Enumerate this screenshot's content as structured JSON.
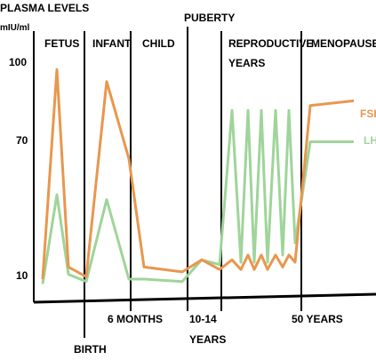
{
  "chart_data": {
    "type": "line",
    "ylabel": "PLASMA LEVELS",
    "yunit": "mIU/ml",
    "yticks": [
      "100",
      "70",
      "10"
    ],
    "phases": [
      "FETUS",
      "INFANT",
      "CHILD",
      "REPRODUCTIVE",
      "YEARS",
      "MENOPAUSE"
    ],
    "timeline_markers": {
      "puberty": "PUBERTY",
      "birth": "BIRTH",
      "six_months": "6 MONTHS",
      "age_10_14": "10-14",
      "years": "YEARS",
      "fifty_years": "50 YEARS"
    },
    "series": [
      {
        "name": "FSH",
        "color": "#e8974e",
        "values": [
          10,
          97,
          15,
          11,
          92,
          60,
          15,
          13,
          18,
          14,
          18,
          14,
          20,
          14,
          20,
          14,
          20,
          15,
          20,
          17,
          82,
          84
        ]
      },
      {
        "name": "LH",
        "color": "#9fd49a",
        "values": [
          8,
          45,
          12,
          9,
          43,
          10,
          10,
          9,
          18,
          16,
          80,
          17,
          80,
          17,
          80,
          17,
          80,
          20,
          80,
          25,
          67,
          67
        ]
      }
    ]
  }
}
